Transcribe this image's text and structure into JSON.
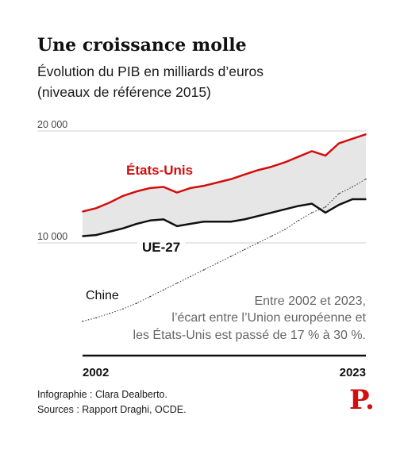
{
  "title": "Une croissance molle",
  "subtitle": [
    "Évolution du PIB en milliards d’euros",
    "(niveaux de référence 2015)"
  ],
  "annotation": [
    "Entre 2002 et 2023,",
    "l’écart entre l’Union européenne et",
    "les États-Unis est passé de 17 % à 30 %."
  ],
  "footer": [
    "Infographie : Clara Dealberto.",
    "Sources  : Rapport Draghi, OCDE."
  ],
  "logo": "P.",
  "colors": {
    "us": "#d50d0d",
    "eu": "#111111",
    "china": "#333333",
    "band": "#e6e6e6"
  },
  "chart_data": {
    "type": "line",
    "x": [
      2002,
      2003,
      2004,
      2005,
      2006,
      2007,
      2008,
      2009,
      2010,
      2011,
      2012,
      2013,
      2014,
      2015,
      2016,
      2017,
      2018,
      2019,
      2020,
      2021,
      2022,
      2023
    ],
    "series": [
      {
        "key": "us",
        "name": "États-Unis",
        "values": [
          12800,
          13100,
          13600,
          14200,
          14600,
          14900,
          15000,
          14500,
          14900,
          15100,
          15400,
          15700,
          16100,
          16500,
          16800,
          17200,
          17700,
          18200,
          17800,
          18900,
          19300,
          19700
        ]
      },
      {
        "key": "eu",
        "name": "UE-27",
        "values": [
          10600,
          10700,
          11000,
          11300,
          11700,
          12000,
          12100,
          11500,
          11700,
          11900,
          11900,
          11900,
          12100,
          12400,
          12700,
          13000,
          13300,
          13500,
          12700,
          13400,
          13900,
          13900
        ]
      },
      {
        "key": "china",
        "name": "Chine",
        "values": [
          3000,
          3300,
          3700,
          4100,
          4600,
          5200,
          5800,
          6400,
          7000,
          7600,
          8200,
          8800,
          9400,
          10000,
          10600,
          11200,
          12000,
          12700,
          13200,
          14400,
          15000,
          15700
        ]
      }
    ],
    "yticks": [
      10000,
      20000
    ],
    "ytick_labels": [
      "10 000",
      "20 000"
    ],
    "xtick_labels": [
      "2002",
      "2023"
    ],
    "ylim": [
      3000,
      20000
    ]
  }
}
